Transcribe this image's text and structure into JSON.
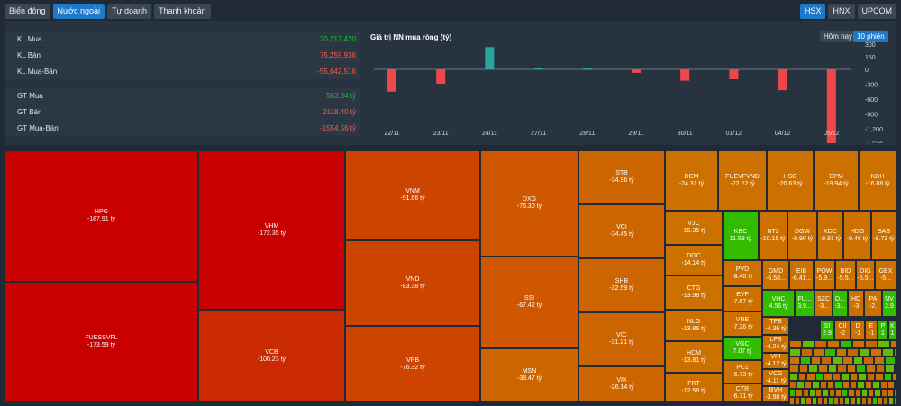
{
  "tabs_left": [
    "Biến động",
    "Nước ngoài",
    "Tự doanh",
    "Thanh khoản"
  ],
  "tabs_right": [
    "HSX",
    "HNX",
    "UPCOM"
  ],
  "stats": [
    {
      "label": "KL Mua",
      "value": "20,217,420",
      "tone": "pos"
    },
    {
      "label": "KL Bán",
      "value": "75,259,936",
      "tone": "neg"
    },
    {
      "label": "KL Mua-Bán",
      "value": "-55,042,516",
      "tone": "neg"
    },
    {
      "label": "GT Mua",
      "value": "563.84 tỷ",
      "tone": "pos"
    },
    {
      "label": "GT Bán",
      "value": "2118.40 tỷ",
      "tone": "neg"
    },
    {
      "label": "GT Mua-Bán",
      "value": "-1554.56 tỷ",
      "tone": "neg"
    }
  ],
  "range_buttons": [
    "Hôm nay",
    "10 phiên"
  ],
  "colors": {
    "pos": "#2ba59a",
    "neg": "#f04848"
  },
  "chart_data": {
    "type": "bar",
    "title": "Giá trị NN mua ròng (tỷ)",
    "categories": [
      "22/11",
      "23/11",
      "24/11",
      "27/11",
      "28/11",
      "29/11",
      "30/11",
      "01/12",
      "04/12",
      "05/12"
    ],
    "values": [
      -450,
      -290,
      265,
      20,
      10,
      -70,
      -230,
      -200,
      -420,
      -1554.56
    ],
    "yticks": [
      "600",
      "450",
      "300",
      "150",
      "0",
      "-300",
      "-600",
      "-900",
      "-1,200",
      "-1,500",
      "-1,800"
    ],
    "ylim": [
      -1800,
      600
    ],
    "grid": false
  },
  "treemap": [
    {
      "t": "HPG",
      "v": "-187.91 tỷ"
    },
    {
      "t": "FUESSVFL",
      "v": "-173.59 tỷ"
    },
    {
      "t": "VHM",
      "v": "-172.35 tỷ"
    },
    {
      "t": "VCB",
      "v": "-100.23 tỷ"
    },
    {
      "t": "VNM",
      "v": "-91.66 tỷ"
    },
    {
      "t": "VND",
      "v": "-83.38 tỷ"
    },
    {
      "t": "VPB",
      "v": "-76.32 tỷ"
    },
    {
      "t": "DXG",
      "v": "-76.30 tỷ"
    },
    {
      "t": "SSI",
      "v": "-67.42 tỷ"
    },
    {
      "t": "MSN",
      "v": "-38.47 tỷ"
    },
    {
      "t": "STB",
      "v": "-34.96 tỷ"
    },
    {
      "t": "VCI",
      "v": "-34.45 tỷ"
    },
    {
      "t": "SHB",
      "v": "-32.59 tỷ"
    },
    {
      "t": "VIC",
      "v": "-31.21 tỷ"
    },
    {
      "t": "VIX",
      "v": "-26.14 tỷ"
    },
    {
      "t": "DCM",
      "v": "-24.31 tỷ"
    },
    {
      "t": "FUEVFVND",
      "v": "-22.22 tỷ"
    },
    {
      "t": "HSG",
      "v": "-20.63 tỷ"
    },
    {
      "t": "DPM",
      "v": "-19.94 tỷ"
    },
    {
      "t": "KDH",
      "v": "-16.88 tỷ"
    },
    {
      "t": "VJC",
      "v": "-15.35 tỷ"
    },
    {
      "t": "DGC",
      "v": "-14.14 tỷ"
    },
    {
      "t": "CTG",
      "v": "-13.98 tỷ"
    },
    {
      "t": "NLG",
      "v": "-13.86 tỷ"
    },
    {
      "t": "HCM",
      "v": "-13.81 tỷ"
    },
    {
      "t": "FRT",
      "v": "-12.58 tỷ"
    },
    {
      "t": "KBC",
      "v": "11.58 tỷ"
    },
    {
      "t": "NT2",
      "v": "-10.15 tỷ"
    },
    {
      "t": "DGW",
      "v": "-9.90 tỷ"
    },
    {
      "t": "KDC",
      "v": "-9.81 tỷ"
    },
    {
      "t": "HDG",
      "v": "-9.46 tỷ"
    },
    {
      "t": "SAB",
      "v": "-8.73 tỷ"
    },
    {
      "t": "PVD",
      "v": "-8.40 tỷ"
    },
    {
      "t": "EVF",
      "v": "-7.67 tỷ"
    },
    {
      "t": "VRE",
      "v": "-7.26 tỷ"
    },
    {
      "t": "VGC",
      "v": "7.07 tỷ"
    },
    {
      "t": "PC1",
      "v": "-6.73 tỷ"
    },
    {
      "t": "CTR",
      "v": "-6.71 tỷ"
    },
    {
      "t": "GMD",
      "v": "-6.58..."
    },
    {
      "t": "EIB",
      "v": "-6.41..."
    },
    {
      "t": "POW",
      "v": "-5.9..."
    },
    {
      "t": "BID",
      "v": "-5.5..."
    },
    {
      "t": "DIG",
      "v": "-5.5..."
    },
    {
      "t": "GEX",
      "v": "-5..."
    },
    {
      "t": "VHC",
      "v": "4.56 tỷ"
    },
    {
      "t": "FU...",
      "v": "3.9..."
    },
    {
      "t": "SZC",
      "v": "-3..."
    },
    {
      "t": "D...",
      "v": "-3..."
    },
    {
      "t": "HD",
      "v": "-3"
    },
    {
      "t": "NV",
      "v": "2.9"
    },
    {
      "t": "TPB",
      "v": "-4.36 tỷ"
    },
    {
      "t": "LPB",
      "v": "-4.24 tỷ"
    },
    {
      "t": "VPI",
      "v": "-4.12 tỷ"
    },
    {
      "t": "VCG",
      "v": "-4.11 tỷ"
    },
    {
      "t": "BVH",
      "v": "-3.98 tỷ"
    },
    {
      "t": "SI",
      "v": "2.9"
    },
    {
      "t": "CII",
      "v": "-2"
    },
    {
      "t": "D",
      "v": "-1"
    },
    {
      "t": "E",
      "v": "-1"
    },
    {
      "t": "P",
      "v": "1"
    },
    {
      "t": "K",
      "v": "1"
    },
    {
      "t": "PA",
      "v": "-2."
    }
  ]
}
